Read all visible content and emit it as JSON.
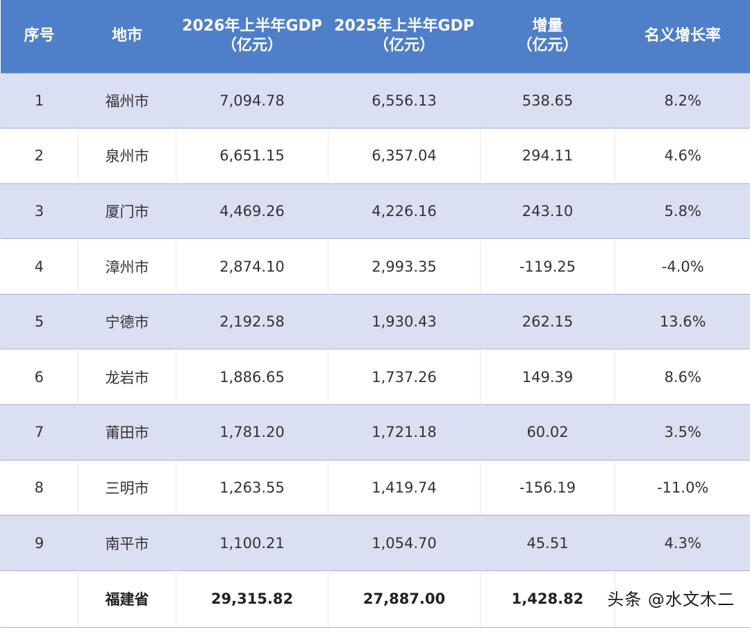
{
  "chart_data": {
    "type": "table",
    "columns": [
      "序号",
      "地市",
      "2026年上半年GDP\n（亿元）",
      "2025年上半年GDP\n（亿元）",
      "增量\n（亿元）",
      "名义增长率"
    ],
    "rows": [
      [
        "1",
        "福州市",
        "7,094.78",
        "6,556.13",
        "538.65",
        "8.2%"
      ],
      [
        "2",
        "泉州市",
        "6,651.15",
        "6,357.04",
        "294.11",
        "4.6%"
      ],
      [
        "3",
        "厦门市",
        "4,469.26",
        "4,226.16",
        "243.10",
        "5.8%"
      ],
      [
        "4",
        "漳州市",
        "2,874.10",
        "2,993.35",
        "-119.25",
        "-4.0%"
      ],
      [
        "5",
        "宁德市",
        "2,192.58",
        "1,930.43",
        "262.15",
        "13.6%"
      ],
      [
        "6",
        "龙岩市",
        "1,886.65",
        "1,737.26",
        "149.39",
        "8.6%"
      ],
      [
        "7",
        "莆田市",
        "1,781.20",
        "1,721.18",
        "60.02",
        "3.5%"
      ],
      [
        "8",
        "三明市",
        "1,263.55",
        "1,419.74",
        "-156.19",
        "-11.0%"
      ],
      [
        "9",
        "南平市",
        "1,100.21",
        "1,054.70",
        "45.51",
        "4.3%"
      ]
    ],
    "total_row": [
      "",
      "福建省",
      "29,315.82",
      "27,887.00",
      "1,428.82",
      ""
    ]
  },
  "watermark": "头条 @水文木二",
  "colors": {
    "header_bg": "#4f7fc8",
    "band_bg": "#dae0f2"
  }
}
